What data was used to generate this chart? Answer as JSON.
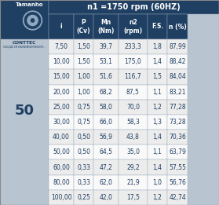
{
  "title": "n1 =1750 rpm (60HZ)",
  "size_value": "50",
  "headers": [
    "i",
    "P\n(Cv)",
    "Mn\n(Nm)",
    "n2\n(rpm)",
    "F.S.",
    "n (%)"
  ],
  "rows": [
    [
      "7,50",
      "1,50",
      "39,7",
      "233,3",
      "1,8",
      "87,99"
    ],
    [
      "10,00",
      "1,50",
      "53,1",
      "175,0",
      "1,4",
      "88,42"
    ],
    [
      "15,00",
      "1,00",
      "51,6",
      "116,7",
      "1,5",
      "84,04"
    ],
    [
      "20,00",
      "1,00",
      "68,2",
      "87,5",
      "1,1",
      "83,21"
    ],
    [
      "25,00",
      "0,75",
      "58,0",
      "70,0",
      "1,2",
      "77,28"
    ],
    [
      "30,00",
      "0,75",
      "66,0",
      "58,3",
      "1,3",
      "73,28"
    ],
    [
      "40,00",
      "0,50",
      "56,9",
      "43,8",
      "1,4",
      "70,36"
    ],
    [
      "50,00",
      "0,50",
      "64,5",
      "35,0",
      "1,1",
      "63,79"
    ],
    [
      "60,00",
      "0,33",
      "47,2",
      "29,2",
      "1,4",
      "57,55"
    ],
    [
      "80,00",
      "0,33",
      "62,0",
      "21,9",
      "1,0",
      "56,76"
    ],
    [
      "100,00",
      "0,25",
      "42,0",
      "17,5",
      "1,2",
      "42,74"
    ]
  ],
  "header_bg": "#1f3f63",
  "header_fg": "#ffffff",
  "title_bg": "#1f3f63",
  "title_fg": "#ffffff",
  "row_bg_even": "#ececec",
  "row_bg_odd": "#f9f9f9",
  "left_panel_bg": "#b8c4cf",
  "left_top_bg": "#1f3f63",
  "border_color": "#9aaabb",
  "text_color": "#1f3f63",
  "logo_outer_color": "#c8d0d8",
  "logo_inner_color": "#1f3f63",
  "figsize": [
    2.79,
    2.61
  ],
  "dpi": 100
}
